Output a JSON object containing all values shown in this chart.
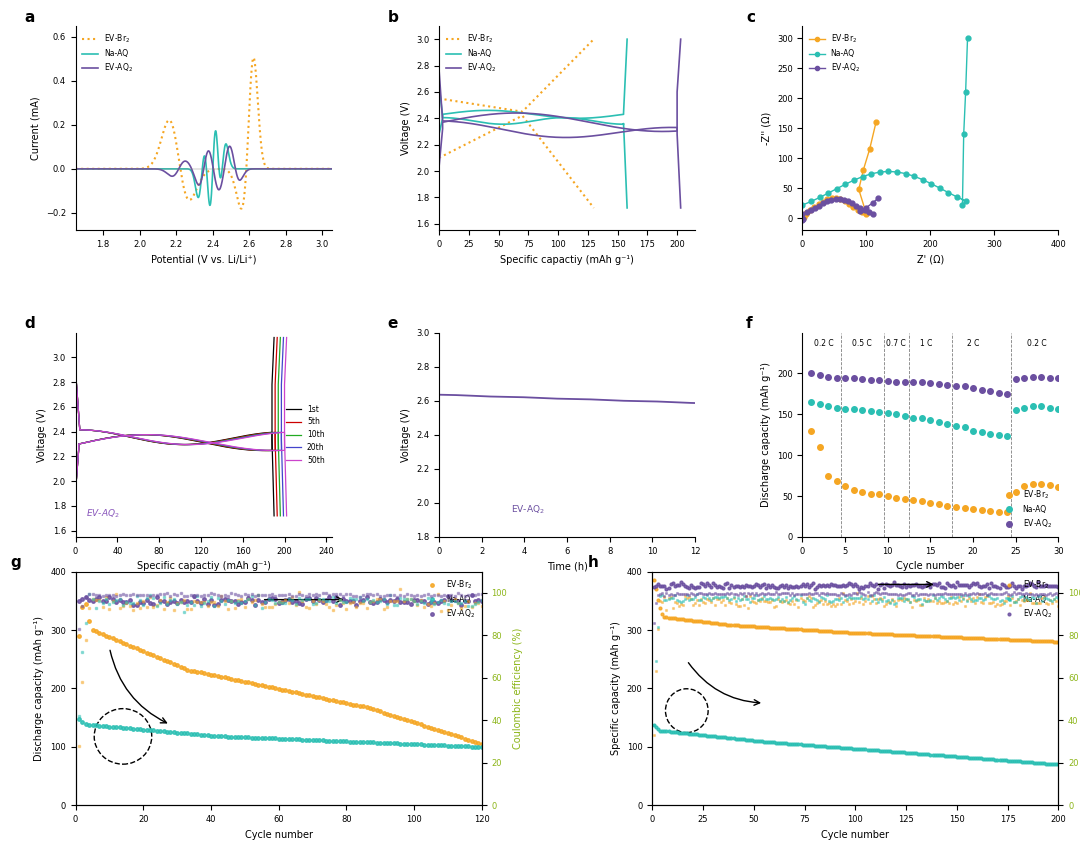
{
  "colors": {
    "ev_br2": "#F5A623",
    "na_aq": "#2BBFB3",
    "ev_aq2": "#6B4FA0"
  },
  "panel_a": {
    "xlabel": "Potential (V vs. Li/Li⁺)",
    "ylabel": "Current (mA)",
    "xlim": [
      1.65,
      3.05
    ],
    "ylim": [
      -0.28,
      0.65
    ]
  },
  "panel_b": {
    "xlabel": "Specific capactiy (mAh g⁻¹)",
    "ylabel": "Voltage (V)",
    "xlim": [
      0,
      215
    ],
    "ylim": [
      1.55,
      3.1
    ]
  },
  "panel_c": {
    "xlabel": "Z' (Ω)",
    "ylabel": "-Z'' (Ω)",
    "xlim": [
      0,
      400
    ],
    "ylim": [
      -20,
      320
    ]
  },
  "panel_d": {
    "xlabel": "Specific capactiy (mAh g⁻¹)",
    "ylabel": "Voltage (V)",
    "xlim": [
      0,
      245
    ],
    "ylim": [
      1.55,
      3.2
    ],
    "label": "EV-AQ₂",
    "cycles": [
      "1st",
      "5th",
      "10th",
      "20th",
      "50th"
    ],
    "cycle_colors": [
      "#000000",
      "#CC0000",
      "#22AA22",
      "#4444CC",
      "#CC44CC"
    ]
  },
  "panel_e": {
    "xlabel": "Time (h)",
    "ylabel": "Voltage (V)",
    "xlim": [
      0,
      12
    ],
    "ylim": [
      1.8,
      3.0
    ],
    "label": "EV-AQ₂"
  },
  "panel_f": {
    "xlabel": "Cycle number",
    "ylabel": "Discharge capacity (mAh g⁻¹)",
    "xlim": [
      0,
      30
    ],
    "ylim": [
      0,
      250
    ],
    "rates": [
      "0.2 C",
      "0.5 C",
      "0.7 C",
      "1 C",
      "2 C",
      "0.2 C"
    ],
    "rate_x": [
      2.5,
      7,
      11,
      14.5,
      20,
      27.5
    ],
    "vlines": [
      4.5,
      9.5,
      12.5,
      17.5,
      24.5
    ]
  },
  "panel_g": {
    "xlabel": "Cycle number",
    "ylabel": "Discharge capacity (mAh g⁻¹)",
    "ylabel2": "Coulombic efficiency (%)",
    "xlim": [
      0,
      120
    ],
    "ylim": [
      0,
      400
    ],
    "ylim2": [
      0,
      110
    ]
  },
  "panel_h": {
    "xlabel": "Cycle number",
    "ylabel": "Specific capacity (mAh g⁻¹)",
    "ylabel2": "Coulombic efficiency (%)",
    "xlim": [
      0,
      200
    ],
    "ylim": [
      0,
      400
    ],
    "ylim2": [
      0,
      110
    ]
  }
}
